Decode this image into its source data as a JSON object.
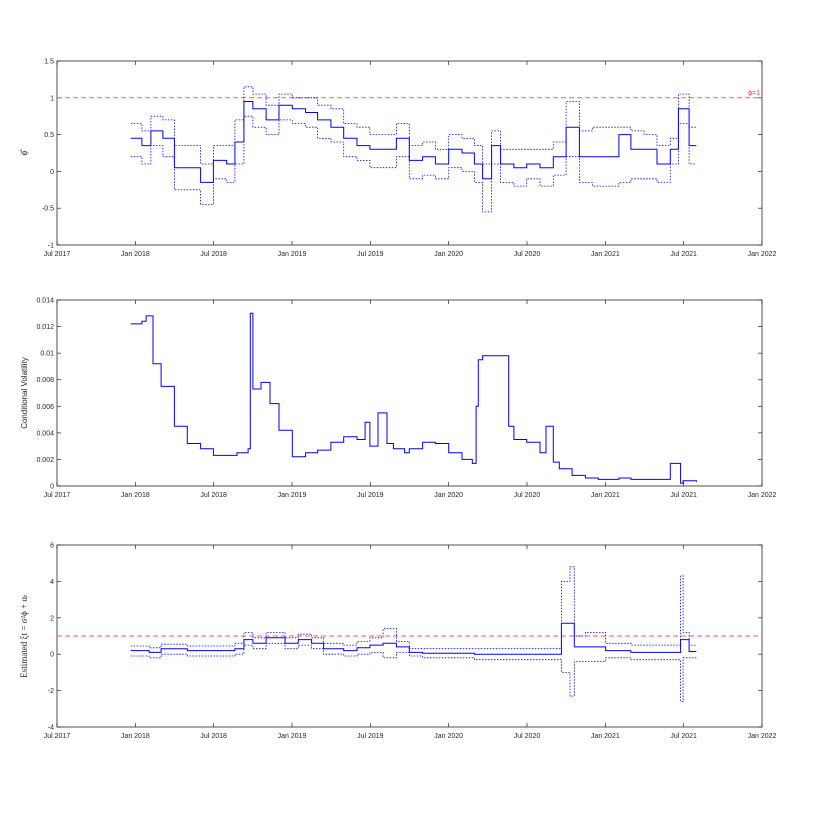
{
  "colors": {
    "series": "#0000ff",
    "reference": "#ff5a5a",
    "axis": "#262626"
  },
  "chart_data": [
    {
      "type": "line",
      "title": "",
      "xlabel": "",
      "ylabel": "ϕ̂",
      "x_tick_labels": [
        "Jul 2017",
        "Jan 2018",
        "Jul 2018",
        "Jan 2019",
        "Jul 2019",
        "Jan 2020",
        "Jul 2020",
        "Jan 2021",
        "Jul 2021",
        "Jan 2022"
      ],
      "y_tick_labels": [
        "-1",
        "-0.5",
        "0",
        "0.5",
        "1",
        "1.5"
      ],
      "xlim": [
        "2017-07-01",
        "2022-01-01"
      ],
      "ylim": [
        -1,
        1.5
      ],
      "reference_line": {
        "y": 1,
        "label": "ϕ=1"
      },
      "series": [
        {
          "style": "solid",
          "x": [
            "2017-12-20",
            "2018-01-15",
            "2018-02-05",
            "2018-03-05",
            "2018-04-01",
            "2018-05-01",
            "2018-06-01",
            "2018-07-01",
            "2018-08-01",
            "2018-08-20",
            "2018-09-10",
            "2018-10-01",
            "2018-11-01",
            "2018-12-01",
            "2019-01-01",
            "2019-02-01",
            "2019-03-01",
            "2019-04-01",
            "2019-05-01",
            "2019-06-01",
            "2019-07-01",
            "2019-08-01",
            "2019-09-01",
            "2019-10-01",
            "2019-11-01",
            "2019-12-01",
            "2020-01-01",
            "2020-02-01",
            "2020-03-01",
            "2020-03-20",
            "2020-04-10",
            "2020-05-01",
            "2020-06-01",
            "2020-07-01",
            "2020-08-01",
            "2020-09-01",
            "2020-10-01",
            "2020-11-01",
            "2020-12-01",
            "2021-01-01",
            "2021-02-01",
            "2021-03-01",
            "2021-04-01",
            "2021-05-01",
            "2021-06-01",
            "2021-06-20",
            "2021-07-01",
            "2021-07-15",
            "2021-08-01"
          ],
          "y": [
            0.45,
            0.35,
            0.55,
            0.45,
            0.05,
            0.05,
            -0.15,
            0.15,
            0.1,
            0.4,
            0.95,
            0.85,
            0.7,
            0.9,
            0.85,
            0.8,
            0.7,
            0.6,
            0.45,
            0.35,
            0.3,
            0.3,
            0.45,
            0.15,
            0.2,
            0.1,
            0.3,
            0.25,
            0.1,
            -0.1,
            0.35,
            0.1,
            0.05,
            0.1,
            0.05,
            0.2,
            0.6,
            0.2,
            0.2,
            0.2,
            0.5,
            0.3,
            0.3,
            0.1,
            0.3,
            0.85,
            0.85,
            0.35,
            0.35
          ]
        },
        {
          "style": "dotted",
          "x": [
            "2017-12-20",
            "2018-01-15",
            "2018-02-05",
            "2018-03-05",
            "2018-04-01",
            "2018-05-01",
            "2018-06-01",
            "2018-07-01",
            "2018-08-01",
            "2018-08-20",
            "2018-09-10",
            "2018-10-01",
            "2018-11-01",
            "2018-12-01",
            "2019-01-01",
            "2019-02-01",
            "2019-03-01",
            "2019-04-01",
            "2019-05-01",
            "2019-06-01",
            "2019-07-01",
            "2019-08-01",
            "2019-09-01",
            "2019-10-01",
            "2019-11-01",
            "2019-12-01",
            "2020-01-01",
            "2020-02-01",
            "2020-03-01",
            "2020-03-20",
            "2020-04-10",
            "2020-05-01",
            "2020-06-01",
            "2020-07-01",
            "2020-08-01",
            "2020-09-01",
            "2020-10-01",
            "2020-11-01",
            "2020-12-01",
            "2021-01-01",
            "2021-02-01",
            "2021-03-01",
            "2021-04-01",
            "2021-05-01",
            "2021-06-01",
            "2021-06-20",
            "2021-07-01",
            "2021-07-15",
            "2021-08-01"
          ],
          "y": [
            0.65,
            0.55,
            0.75,
            0.7,
            0.35,
            0.35,
            0.1,
            0.35,
            0.35,
            0.7,
            1.15,
            1.05,
            0.9,
            1.05,
            1.0,
            1.0,
            0.9,
            0.85,
            0.65,
            0.6,
            0.5,
            0.5,
            0.65,
            0.35,
            0.4,
            0.3,
            0.5,
            0.45,
            0.35,
            0.1,
            0.55,
            0.3,
            0.3,
            0.3,
            0.3,
            0.4,
            0.95,
            0.55,
            0.6,
            0.6,
            0.6,
            0.55,
            0.5,
            0.35,
            0.45,
            1.05,
            1.05,
            0.6,
            0.6
          ]
        },
        {
          "style": "dotted",
          "x": [
            "2017-12-20",
            "2018-01-15",
            "2018-02-05",
            "2018-03-05",
            "2018-04-01",
            "2018-05-01",
            "2018-06-01",
            "2018-07-01",
            "2018-08-01",
            "2018-08-20",
            "2018-09-10",
            "2018-10-01",
            "2018-11-01",
            "2018-12-01",
            "2019-01-01",
            "2019-02-01",
            "2019-03-01",
            "2019-04-01",
            "2019-05-01",
            "2019-06-01",
            "2019-07-01",
            "2019-08-01",
            "2019-09-01",
            "2019-10-01",
            "2019-11-01",
            "2019-12-01",
            "2020-01-01",
            "2020-02-01",
            "2020-03-01",
            "2020-03-20",
            "2020-04-10",
            "2020-05-01",
            "2020-06-01",
            "2020-07-01",
            "2020-08-01",
            "2020-09-01",
            "2020-10-01",
            "2020-11-01",
            "2020-12-01",
            "2021-01-01",
            "2021-02-01",
            "2021-03-01",
            "2021-04-01",
            "2021-05-01",
            "2021-06-01",
            "2021-06-20",
            "2021-07-01",
            "2021-07-15",
            "2021-08-01"
          ],
          "y": [
            0.2,
            0.1,
            0.35,
            0.2,
            -0.25,
            -0.25,
            -0.45,
            -0.1,
            -0.15,
            0.1,
            0.75,
            0.6,
            0.5,
            0.7,
            0.65,
            0.6,
            0.45,
            0.4,
            0.2,
            0.15,
            0.05,
            0.05,
            0.2,
            -0.1,
            -0.05,
            -0.1,
            0.05,
            0.0,
            -0.15,
            -0.55,
            0.1,
            -0.15,
            -0.2,
            -0.1,
            -0.2,
            -0.05,
            0.2,
            -0.15,
            -0.2,
            -0.2,
            -0.15,
            -0.1,
            -0.1,
            -0.15,
            0.1,
            0.65,
            0.65,
            0.1,
            0.1
          ]
        }
      ]
    },
    {
      "type": "line",
      "title": "",
      "xlabel": "",
      "ylabel": "Conditional Volatility",
      "x_tick_labels": [
        "Jul 2017",
        "Jan 2018",
        "Jul 2018",
        "Jan 2019",
        "Jul 2019",
        "Jan 2020",
        "Jul 2020",
        "Jan 2021",
        "Jul 2021",
        "Jan 2022"
      ],
      "y_tick_labels": [
        "0",
        "0.002",
        "0.004",
        "0.006",
        "0.008",
        "0.01",
        "0.012",
        "0.014"
      ],
      "xlim": [
        "2017-07-01",
        "2022-01-01"
      ],
      "ylim": [
        0,
        0.014
      ],
      "series": [
        {
          "style": "solid",
          "x": [
            "2017-12-20",
            "2018-01-15",
            "2018-01-25",
            "2018-02-10",
            "2018-03-01",
            "2018-04-01",
            "2018-05-01",
            "2018-06-01",
            "2018-07-01",
            "2018-08-01",
            "2018-08-25",
            "2018-09-20",
            "2018-09-25",
            "2018-10-01",
            "2018-10-20",
            "2018-11-10",
            "2018-12-01",
            "2019-01-01",
            "2019-02-01",
            "2019-03-01",
            "2019-04-01",
            "2019-05-01",
            "2019-06-01",
            "2019-06-20",
            "2019-07-01",
            "2019-07-20",
            "2019-08-10",
            "2019-08-25",
            "2019-09-20",
            "2019-10-01",
            "2019-11-01",
            "2019-12-01",
            "2020-01-01",
            "2020-02-01",
            "2020-02-25",
            "2020-03-05",
            "2020-03-10",
            "2020-03-20",
            "2020-04-01",
            "2020-05-15",
            "2020-05-20",
            "2020-06-01",
            "2020-07-01",
            "2020-08-01",
            "2020-08-15",
            "2020-09-01",
            "2020-09-15",
            "2020-10-15",
            "2020-11-15",
            "2020-12-15",
            "2021-02-01",
            "2021-03-01",
            "2021-04-01",
            "2021-05-01",
            "2021-06-01",
            "2021-06-20",
            "2021-06-25",
            "2021-07-01",
            "2021-08-01"
          ],
          "y": [
            0.0122,
            0.0124,
            0.0128,
            0.0092,
            0.0075,
            0.0045,
            0.0032,
            0.0028,
            0.0023,
            0.0023,
            0.0025,
            0.0028,
            0.013,
            0.0073,
            0.0078,
            0.0062,
            0.0042,
            0.0022,
            0.0025,
            0.0027,
            0.0033,
            0.0037,
            0.0035,
            0.0048,
            0.003,
            0.0055,
            0.0032,
            0.0028,
            0.0025,
            0.0028,
            0.0033,
            0.0032,
            0.0025,
            0.002,
            0.0017,
            0.006,
            0.0095,
            0.0098,
            0.0098,
            0.0098,
            0.0045,
            0.0035,
            0.0033,
            0.0025,
            0.0045,
            0.0018,
            0.0013,
            0.0008,
            0.0006,
            0.0005,
            0.0006,
            0.0005,
            0.0005,
            0.0005,
            0.0017,
            0.0017,
            0.0002,
            0.0004,
            0.0003
          ]
        }
      ]
    },
    {
      "type": "line",
      "title": "",
      "xlabel": "",
      "ylabel": "Estimated ξt = σ²ϕ + αₜ",
      "x_tick_labels": [
        "Jul 2017",
        "Jan 2018",
        "Jul 2018",
        "Jan 2019",
        "Jul 2019",
        "Jan 2020",
        "Jul 2020",
        "Jan 2021",
        "Jul 2021",
        "Jan 2022"
      ],
      "y_tick_labels": [
        "-4",
        "-2",
        "0",
        "2",
        "4",
        "6"
      ],
      "xlim": [
        "2017-07-01",
        "2022-01-01"
      ],
      "ylim": [
        -4,
        6
      ],
      "reference_line": {
        "y": 1
      },
      "series": [
        {
          "style": "solid",
          "x": [
            "2017-12-20",
            "2018-02-01",
            "2018-03-01",
            "2018-05-01",
            "2018-07-01",
            "2018-08-20",
            "2018-09-10",
            "2018-10-01",
            "2018-11-01",
            "2018-12-15",
            "2019-01-15",
            "2019-02-15",
            "2019-03-15",
            "2019-05-01",
            "2019-06-01",
            "2019-07-01",
            "2019-08-01",
            "2019-09-01",
            "2019-10-01",
            "2019-11-01",
            "2020-01-01",
            "2020-03-01",
            "2020-05-01",
            "2020-08-01",
            "2020-09-01",
            "2020-09-20",
            "2020-10-10",
            "2020-10-20",
            "2020-11-15",
            "2021-01-01",
            "2021-03-01",
            "2021-05-01",
            "2021-06-20",
            "2021-06-25",
            "2021-07-01",
            "2021-07-15",
            "2021-08-01"
          ],
          "y": [
            0.2,
            0.1,
            0.3,
            0.2,
            0.2,
            0.3,
            0.8,
            0.6,
            0.9,
            0.6,
            0.8,
            0.6,
            0.3,
            0.2,
            0.35,
            0.5,
            0.6,
            0.4,
            0.1,
            0.05,
            0.05,
            0.0,
            0.0,
            0.0,
            0.0,
            1.7,
            1.7,
            0.4,
            0.4,
            0.2,
            0.1,
            0.1,
            0.1,
            0.8,
            0.8,
            0.15,
            0.15
          ]
        },
        {
          "style": "dotted",
          "x": [
            "2017-12-20",
            "2018-02-01",
            "2018-03-01",
            "2018-05-01",
            "2018-07-01",
            "2018-08-20",
            "2018-09-10",
            "2018-10-01",
            "2018-11-01",
            "2018-12-15",
            "2019-01-15",
            "2019-02-15",
            "2019-03-15",
            "2019-05-01",
            "2019-06-01",
            "2019-07-01",
            "2019-08-01",
            "2019-09-01",
            "2019-10-01",
            "2019-11-01",
            "2020-01-01",
            "2020-03-01",
            "2020-05-01",
            "2020-08-01",
            "2020-09-01",
            "2020-09-20",
            "2020-10-10",
            "2020-10-20",
            "2020-11-15",
            "2021-01-01",
            "2021-03-01",
            "2021-05-01",
            "2021-06-20",
            "2021-06-25",
            "2021-07-01",
            "2021-07-15",
            "2021-08-01"
          ],
          "y": [
            0.45,
            0.35,
            0.55,
            0.45,
            0.45,
            0.6,
            1.2,
            0.9,
            1.2,
            0.9,
            1.1,
            0.9,
            0.6,
            0.5,
            0.7,
            0.9,
            1.4,
            0.7,
            0.3,
            0.3,
            0.3,
            0.3,
            0.3,
            0.3,
            0.3,
            4.0,
            4.8,
            1.0,
            1.2,
            0.6,
            0.5,
            0.5,
            0.5,
            4.3,
            1.2,
            0.5,
            0.5
          ]
        },
        {
          "style": "dotted",
          "x": [
            "2017-12-20",
            "2018-02-01",
            "2018-03-01",
            "2018-05-01",
            "2018-07-01",
            "2018-08-20",
            "2018-09-10",
            "2018-10-01",
            "2018-11-01",
            "2018-12-15",
            "2019-01-15",
            "2019-02-15",
            "2019-03-15",
            "2019-05-01",
            "2019-06-01",
            "2019-07-01",
            "2019-08-01",
            "2019-09-01",
            "2019-10-01",
            "2019-11-01",
            "2020-01-01",
            "2020-03-01",
            "2020-05-01",
            "2020-08-01",
            "2020-09-01",
            "2020-09-20",
            "2020-10-10",
            "2020-10-20",
            "2020-11-15",
            "2021-01-01",
            "2021-03-01",
            "2021-05-01",
            "2021-06-20",
            "2021-06-25",
            "2021-07-01",
            "2021-07-15",
            "2021-08-01"
          ],
          "y": [
            -0.1,
            -0.2,
            0.0,
            -0.1,
            -0.1,
            0.0,
            0.5,
            0.3,
            0.6,
            0.3,
            0.5,
            0.3,
            0.0,
            -0.1,
            0.0,
            0.1,
            -0.2,
            0.1,
            -0.1,
            -0.2,
            -0.2,
            -0.3,
            -0.3,
            -0.3,
            -0.3,
            -1.0,
            -2.3,
            -0.4,
            -0.4,
            -0.2,
            -0.3,
            -0.3,
            -0.3,
            -2.6,
            -0.2,
            -0.2,
            -0.2
          ]
        }
      ]
    }
  ]
}
